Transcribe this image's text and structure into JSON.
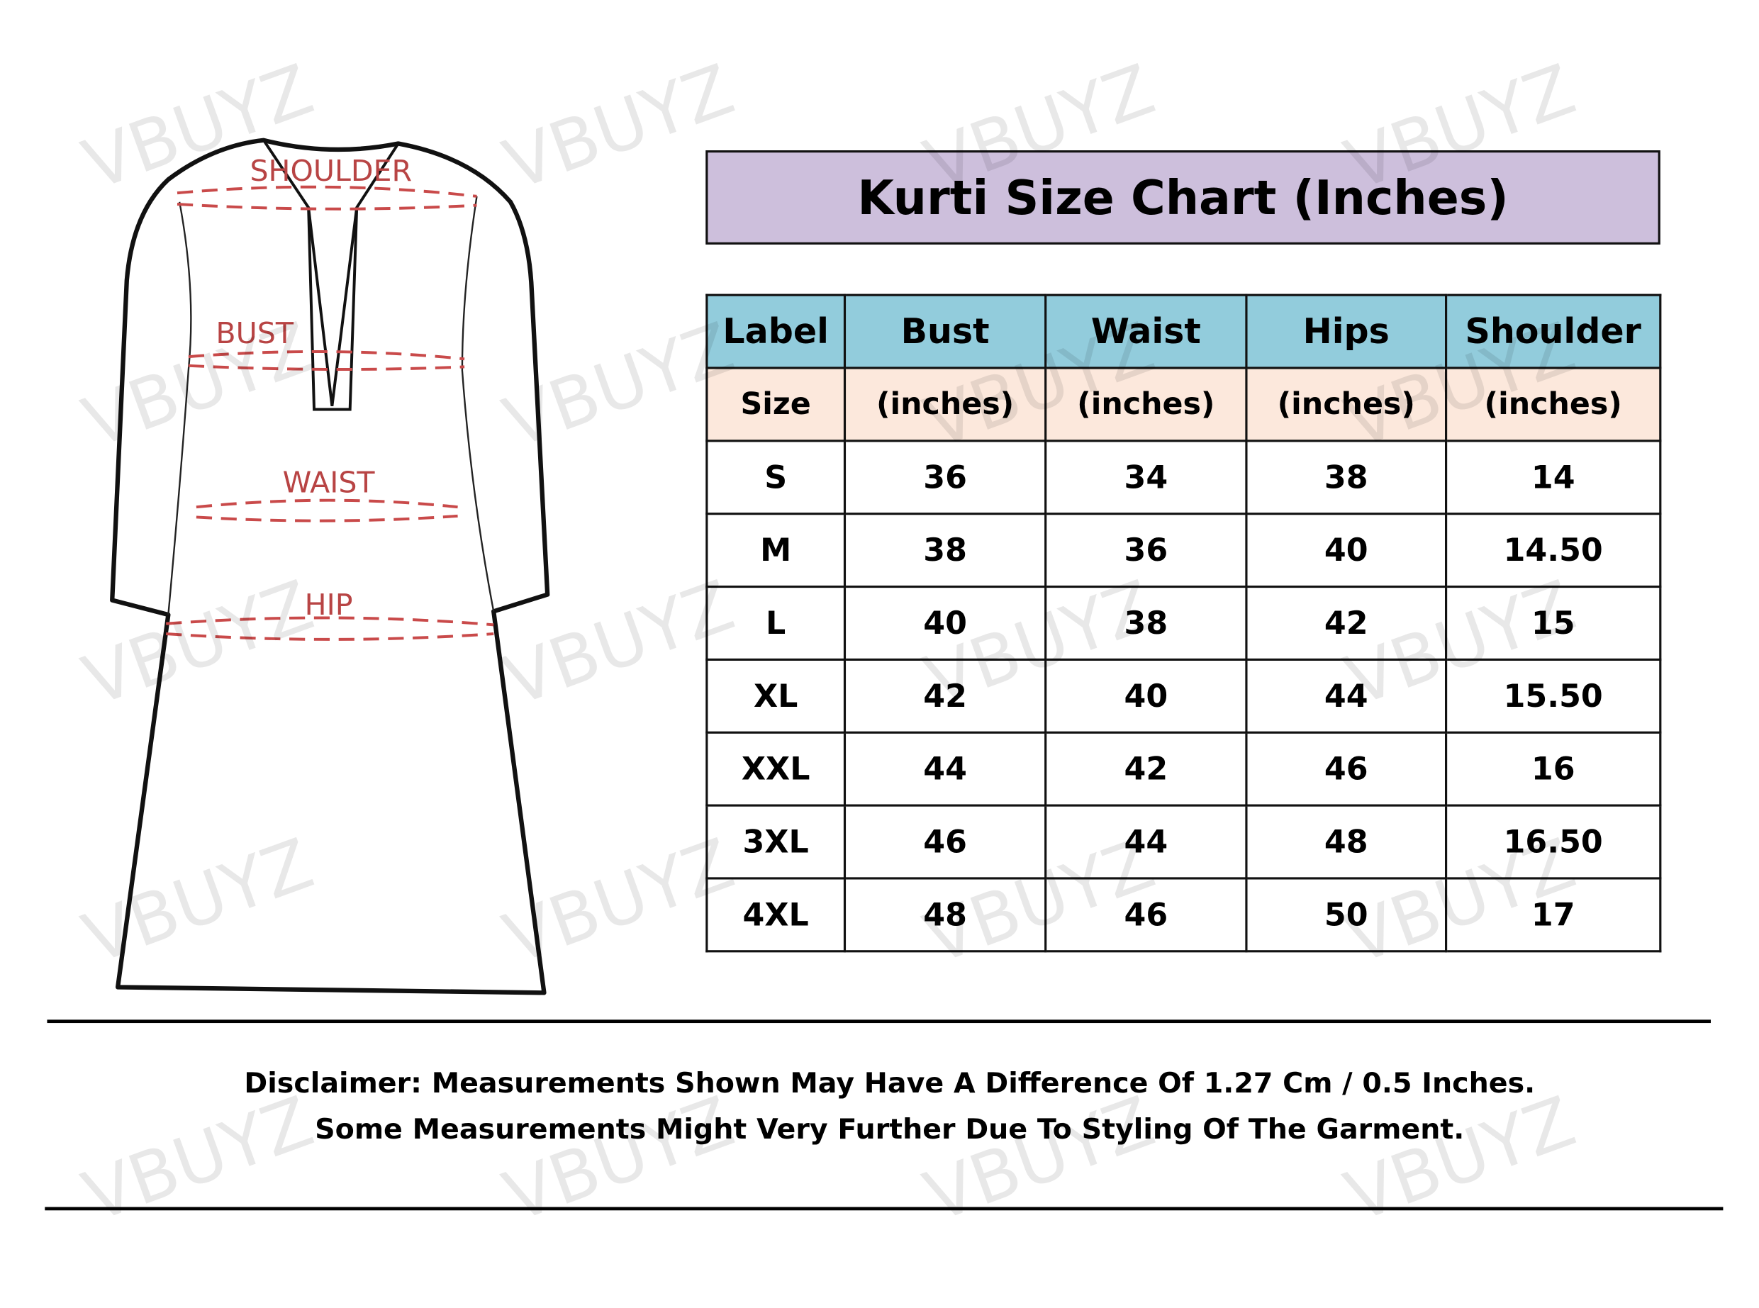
{
  "watermark": "VBUYZ",
  "colors": {
    "title_bg": "#cdbfdc",
    "header_bg": "#92ccdc",
    "subheader_bg": "#fce8dc",
    "measure_line": "#c94a4a"
  },
  "diagram": {
    "labels": {
      "shoulder": "SHOULDER",
      "bust": "BUST",
      "waist": "WAIST",
      "hip": "HIP"
    }
  },
  "title": "Kurti Size Chart (Inches)",
  "table": {
    "headers": [
      "Label",
      "Bust",
      "Waist",
      "Hips",
      "Shoulder"
    ],
    "subheaders": [
      "Size",
      "(inches)",
      "(inches)",
      "(inches)",
      "(inches)"
    ],
    "rows": [
      [
        "S",
        "36",
        "34",
        "38",
        "14"
      ],
      [
        "M",
        "38",
        "36",
        "40",
        "14.50"
      ],
      [
        "L",
        "40",
        "38",
        "42",
        "15"
      ],
      [
        "XL",
        "42",
        "40",
        "44",
        "15.50"
      ],
      [
        "XXL",
        "44",
        "42",
        "46",
        "16"
      ],
      [
        "3XL",
        "46",
        "44",
        "48",
        "16.50"
      ],
      [
        "4XL",
        "48",
        "46",
        "50",
        "17"
      ]
    ]
  },
  "disclaimer": {
    "line1": "Disclaimer: Measurements Shown May Have A Difference Of 1.27 Cm / 0.5 Inches.",
    "line2": "Some Measurements Might Very Further Due To Styling Of The Garment."
  }
}
